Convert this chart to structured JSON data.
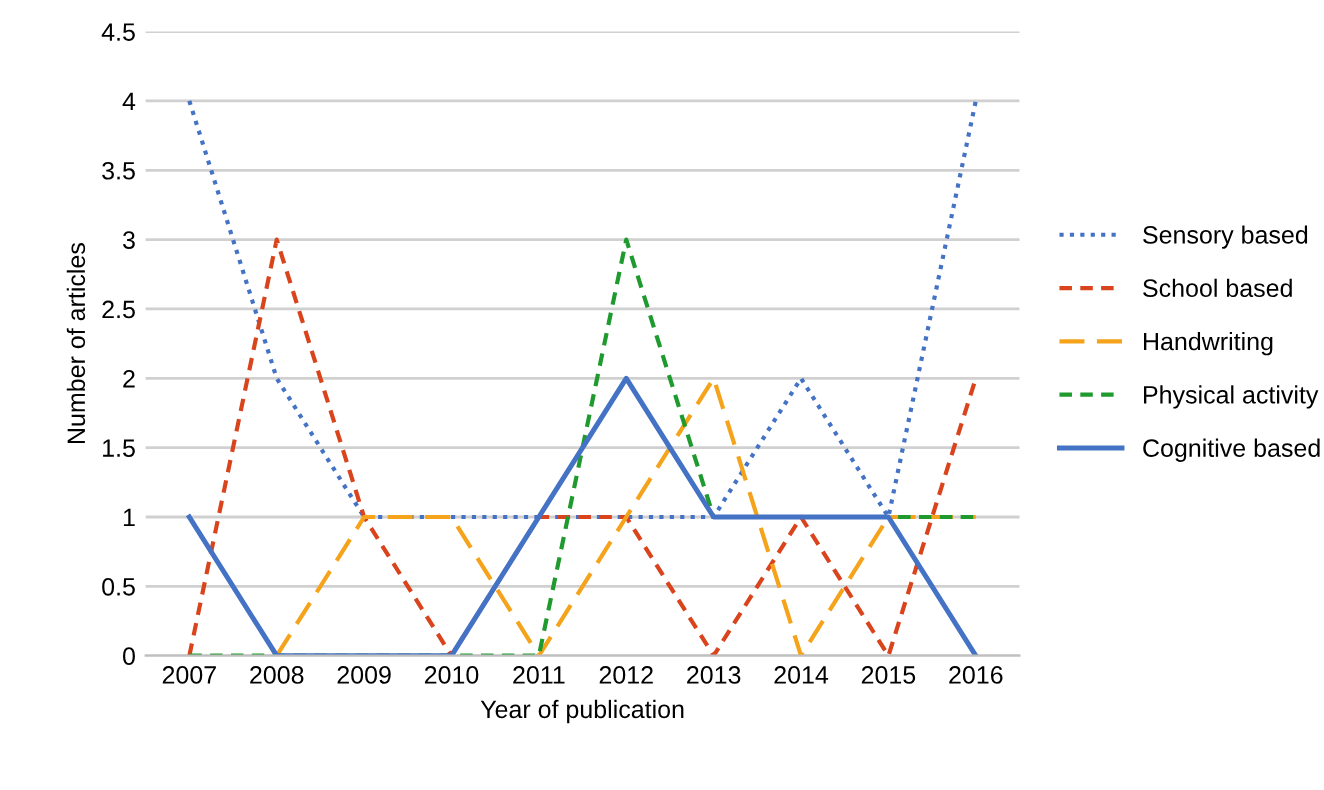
{
  "chart_data": {
    "type": "line",
    "xlabel": "Year of publication",
    "ylabel": "Number of articles",
    "categories": [
      "2007",
      "2008",
      "2009",
      "2010",
      "2011",
      "2012",
      "2013",
      "2014",
      "2015",
      "2016"
    ],
    "series": [
      {
        "name": "Sensory based",
        "color": "#4472c4",
        "line_style": "dotted",
        "values": [
          4,
          2,
          1,
          1,
          1,
          1,
          1,
          2,
          1,
          4
        ]
      },
      {
        "name": "School based",
        "color": "#d9441c",
        "line_style": "dashed",
        "values": [
          0,
          3,
          1,
          0,
          1,
          1,
          0,
          1,
          0,
          2
        ]
      },
      {
        "name": "Handwriting",
        "color": "#f5a31a",
        "line_style": "longdash",
        "values": [
          null,
          0,
          1,
          1,
          0,
          1,
          2,
          0,
          1,
          1
        ]
      },
      {
        "name": "Physical activity",
        "color": "#1f9a2e",
        "line_style": "dashed",
        "values": [
          0,
          0,
          0,
          0,
          0,
          3,
          1,
          1,
          1,
          1
        ]
      },
      {
        "name": "Cognitive based",
        "color": "#4472c4",
        "line_style": "solid",
        "values": [
          1,
          0,
          0,
          0,
          1,
          2,
          1,
          1,
          1,
          0
        ]
      }
    ],
    "ylim": [
      0,
      4.5
    ],
    "yticks": [
      0,
      0.5,
      1,
      1.5,
      2,
      2.5,
      3,
      3.5,
      4,
      4.5
    ],
    "grid": "y",
    "legend": "right",
    "marker": "none"
  }
}
